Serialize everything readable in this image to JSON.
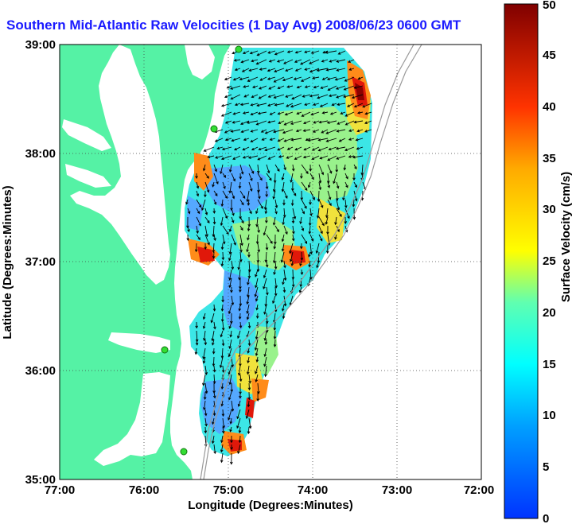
{
  "title": "Southern Mid-Atlantic Raw Velocities (1 Day Avg) 2008/06/23 0600 GMT",
  "chart_data": {
    "type": "heatmap",
    "xlabel": "Longitude (Degrees:Minutes)",
    "ylabel": "Latitude (Degrees:Minutes)",
    "x_ticks": [
      "77:00",
      "76:00",
      "75:00",
      "74:00",
      "73:00",
      "72:00"
    ],
    "y_ticks": [
      "39:00",
      "38:00",
      "37:00",
      "36:00",
      "35:00"
    ],
    "xlim": [
      -77,
      -72
    ],
    "ylim": [
      35,
      39
    ],
    "grid": true,
    "colorbar": {
      "label": "Surface Velocity (cm/s)",
      "min": 0,
      "max": 50,
      "ticks": [
        "0",
        "5",
        "10",
        "15",
        "20",
        "25",
        "30",
        "35",
        "40",
        "45",
        "50"
      ]
    },
    "colors": {
      "land": "#55f2a5",
      "water": "#ffffff",
      "stations": "#33dd33"
    }
  }
}
